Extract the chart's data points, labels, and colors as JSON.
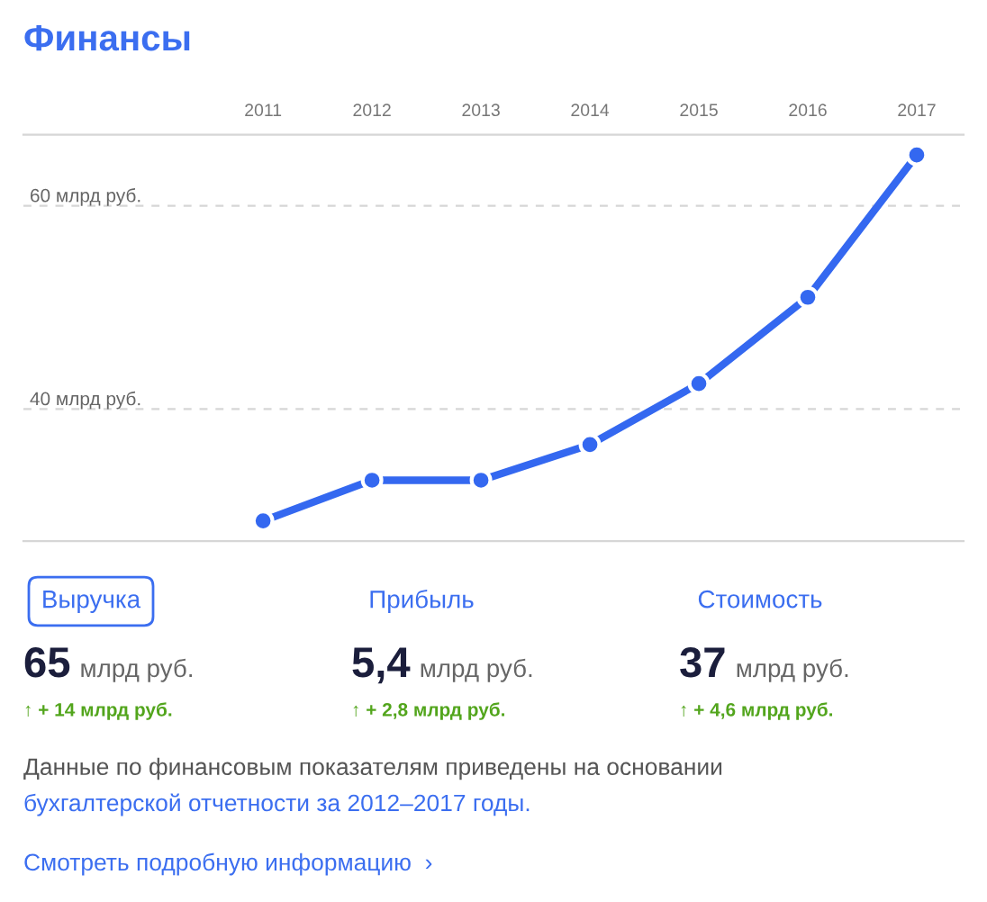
{
  "chart_data": {
    "type": "line",
    "title": "Финансы",
    "categories": [
      "2011",
      "2012",
      "2013",
      "2014",
      "2015",
      "2016",
      "2017"
    ],
    "series": [
      {
        "color": "#3468f0",
        "values": [
          29,
          33,
          33,
          36.5,
          42.5,
          51,
          65
        ]
      }
    ],
    "ylim": [
      27,
      67
    ],
    "yticks": [
      {
        "value": 40,
        "label": "40 млрд руб."
      },
      {
        "value": 60,
        "label": "60 млрд руб."
      }
    ],
    "grid": "y",
    "marker": "circle",
    "line_style": "solid",
    "annotations": [
      "Выручка",
      "Прибыль",
      "Стоимость",
      "65",
      "млрд руб.",
      "5,4",
      "млрд руб.",
      "37",
      "млрд руб.",
      "↑ + 14 млрд руб.",
      "↑ + 2,8 млрд руб.",
      "↑ + 4,6 млрд руб.",
      "Данные по финансовым показателям приведены на основании",
      "бухгалтерской отчетности за 2012–2017 годы.",
      "Смотреть подробную информацию  ›"
    ]
  }
}
